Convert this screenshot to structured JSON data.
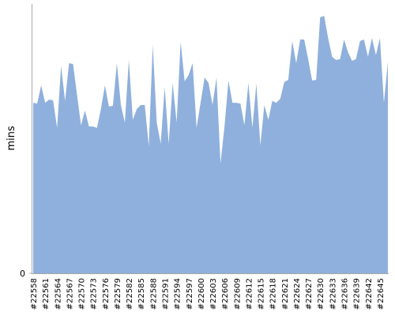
{
  "chart_data": {
    "type": "area",
    "y_label": "mins",
    "color": "#8fb0dc",
    "categories": [
      "#22558",
      null,
      null,
      "#22561",
      null,
      null,
      "#22564",
      null,
      null,
      "#22567",
      null,
      null,
      "#22570",
      null,
      null,
      "#22573",
      null,
      null,
      "#22576",
      null,
      null,
      "#22579",
      null,
      null,
      "#22582",
      null,
      null,
      "#22585",
      null,
      null,
      "#22588",
      null,
      null,
      "#22591",
      null,
      null,
      "#22594",
      null,
      null,
      "#22597",
      null,
      null,
      "#22600",
      null,
      null,
      "#22603",
      null,
      null,
      "#22606",
      null,
      null,
      "#22609",
      null,
      null,
      "#22612",
      null,
      null,
      "#22615",
      null,
      null,
      "#22618",
      null,
      null,
      "#22621",
      null,
      null,
      "#22624",
      null,
      null,
      "#22627",
      null,
      null,
      "#22630",
      null,
      null,
      "#22633",
      null,
      null,
      "#22636",
      null,
      null,
      "#22639",
      null,
      null,
      "#22642",
      null,
      null,
      "#22645",
      null,
      null
    ],
    "values": [
      63.3,
      63,
      69.8,
      63.3,
      64.5,
      64.2,
      54,
      77,
      64,
      78,
      77.7,
      66.3,
      55,
      60.4,
      54.5,
      54.5,
      54,
      61,
      69.8,
      61.9,
      62.2,
      78,
      62.5,
      56,
      79.2,
      57,
      61,
      62.5,
      62.5,
      47.2,
      84.8,
      56,
      48.1,
      69.2,
      48.1,
      70.7,
      56,
      86,
      71.3,
      73.6,
      78,
      54,
      63.3,
      72.7,
      70.7,
      62.5,
      72.7,
      40.8,
      54.5,
      71.6,
      63.3,
      63.3,
      63,
      55,
      70.7,
      54,
      70.4,
      47.5,
      62.5,
      57,
      64,
      63.3,
      64.8,
      71,
      71.8,
      86.2,
      78,
      86.8,
      86.8,
      79.5,
      71.6,
      71.8,
      95,
      95.6,
      87.4,
      80.4,
      79.2,
      79.5,
      86.8,
      82.1,
      78.9,
      79.5,
      86.2,
      86.8,
      80.4,
      87.4,
      81,
      87.4,
      63.3,
      78.6
    ],
    "ylim": [
      0,
      100
    ],
    "yticks": [
      0
    ],
    "grid": false
  }
}
